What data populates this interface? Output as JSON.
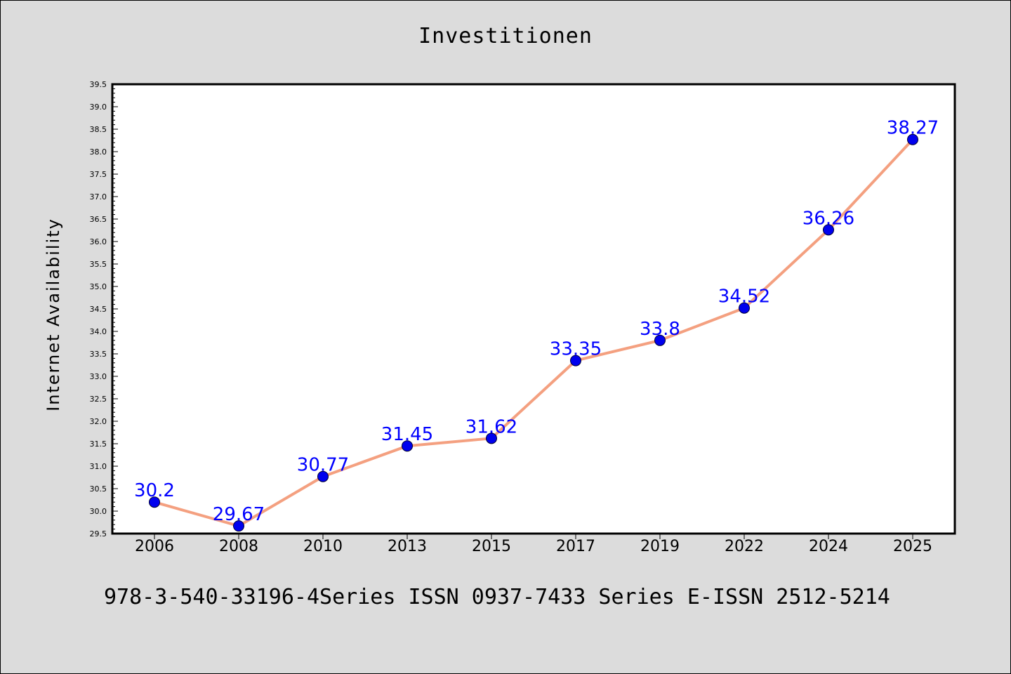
{
  "chart_data": {
    "type": "line",
    "title": "Investitionen",
    "xlabel": "",
    "ylabel": "Internet Availability",
    "categories": [
      "2006",
      "2008",
      "2010",
      "2013",
      "2015",
      "2017",
      "2019",
      "2022",
      "2024",
      "2025"
    ],
    "series": [
      {
        "values": [
          30.2,
          29.67,
          30.77,
          31.45,
          31.62,
          33.35,
          33.8,
          34.52,
          36.26,
          38.27
        ],
        "labels": [
          "30.2",
          "29.67",
          "30.77",
          "31.45",
          "31.62",
          "33.35",
          "33.8",
          "34.52",
          "36.26",
          "38.27"
        ]
      }
    ],
    "ylim": [
      29.5,
      39.5
    ],
    "y_major_step": 0.5,
    "y_tick_labels": [
      "29.5",
      "30.0",
      "30.5",
      "31.0",
      "31.5",
      "32.0",
      "32.5",
      "33.0",
      "33.5",
      "34.0",
      "34.5",
      "35.0",
      "35.5",
      "36.0",
      "36.5",
      "37.0",
      "37.5",
      "38.0",
      "38.5",
      "39.0",
      "39.5"
    ],
    "grid": false,
    "legend": "none",
    "colors": {
      "line": "#f4a080",
      "marker": "#0000ee",
      "data_label": "#0000ff",
      "background": "#dcdcdc",
      "plot_background": "#ffffff"
    }
  },
  "footer": {
    "text": "978-3-540-33196-4Series ISSN 0937-7433 Series E-ISSN 2512-5214"
  }
}
